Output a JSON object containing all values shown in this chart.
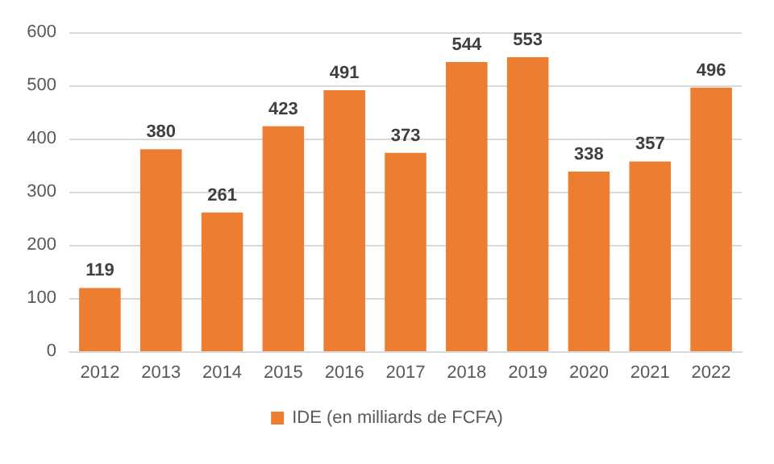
{
  "chart_data": {
    "type": "bar",
    "categories": [
      "2012",
      "2013",
      "2014",
      "2015",
      "2016",
      "2017",
      "2018",
      "2019",
      "2020",
      "2021",
      "2022"
    ],
    "series": [
      {
        "name": "IDE (en milliards de FCFA)",
        "color": "#ed7d31",
        "values": [
          119,
          380,
          261,
          423,
          491,
          373,
          544,
          553,
          338,
          357,
          496
        ]
      }
    ],
    "ylim": [
      0,
      600
    ],
    "yticks": [
      0,
      100,
      200,
      300,
      400,
      500,
      600
    ],
    "grid": "y",
    "legend": "bottom",
    "data_labels": true
  }
}
